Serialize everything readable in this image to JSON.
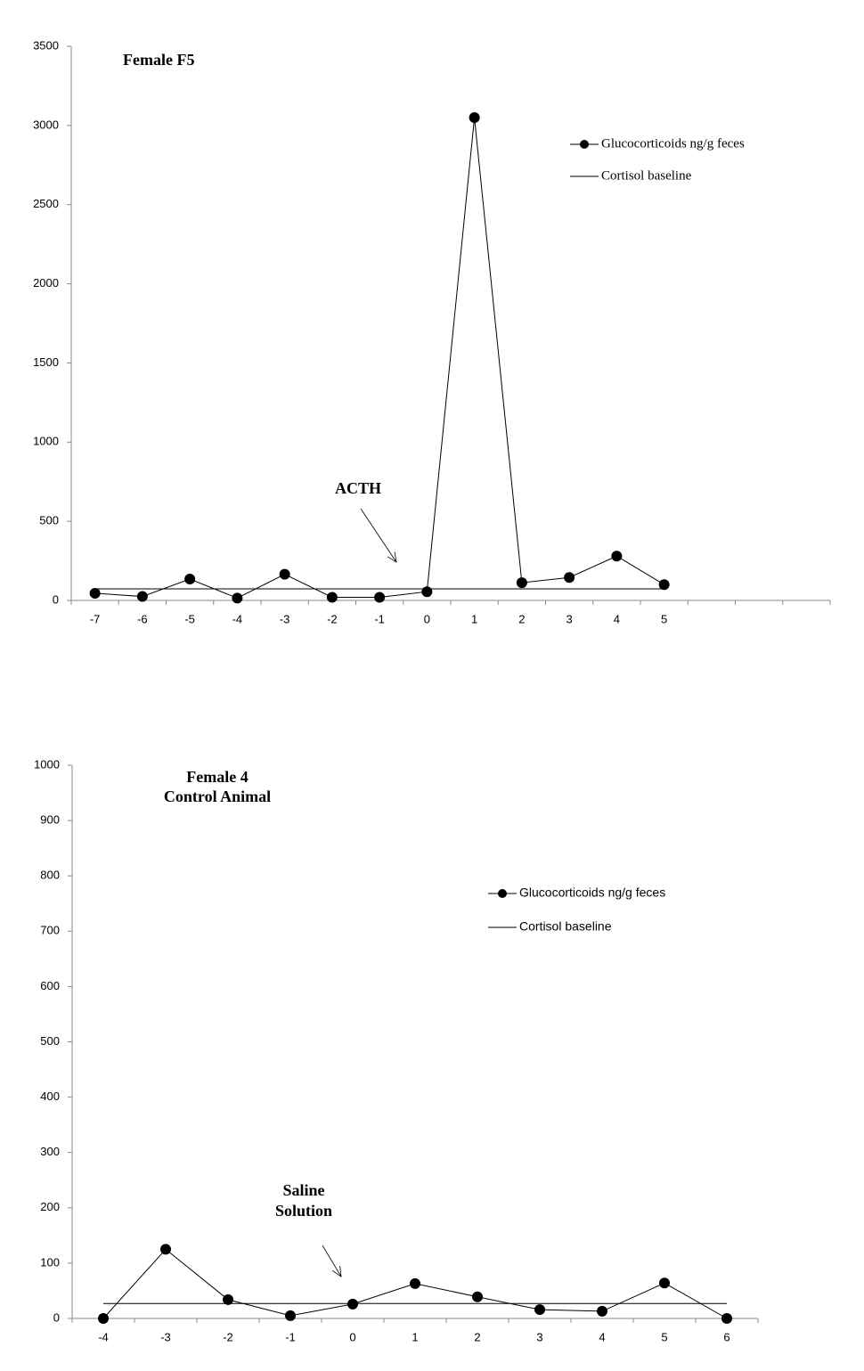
{
  "chart_data": [
    {
      "type": "line",
      "title": "Female F5",
      "annotation": [
        "ACTH"
      ],
      "categories": [
        "-7",
        "-6",
        "-5",
        "-4",
        "-3",
        "-2",
        "-1",
        "0",
        "1",
        "2",
        "3",
        "4",
        "5",
        null,
        null,
        null
      ],
      "series": [
        {
          "name": "Glucocorticoids ng/g feces",
          "color": "#000000",
          "marker": "circle",
          "values": [
            45,
            25,
            135,
            15,
            165,
            20,
            20,
            55,
            3050,
            112,
            145,
            280,
            100,
            null,
            null,
            null
          ]
        },
        {
          "name": "Cortisol baseline",
          "color": "#000000",
          "marker": "none",
          "values": [
            73,
            73,
            73,
            73,
            73,
            73,
            73,
            73,
            73,
            73,
            73,
            73,
            73,
            null,
            null,
            null
          ]
        }
      ],
      "ylim": [
        0,
        3500
      ],
      "yticks": [
        0,
        500,
        1000,
        1500,
        2000,
        2500,
        3000,
        3500
      ],
      "grid": false,
      "legend": "upper right"
    },
    {
      "type": "line",
      "title": "Female 4",
      "subtitle": "Control Animal",
      "annotation": [
        "Saline",
        "Solution"
      ],
      "categories": [
        "-4",
        "-3",
        "-2",
        "-1",
        "0",
        "1",
        "2",
        "3",
        "4",
        "5",
        "6"
      ],
      "series": [
        {
          "name": "Glucocorticoids ng/g feces",
          "color": "#000000",
          "marker": "circle",
          "values": [
            0,
            125,
            34,
            5,
            26,
            63,
            39,
            16,
            13,
            64,
            0
          ]
        },
        {
          "name": "Cortisol baseline",
          "color": "#000000",
          "marker": "none",
          "values": [
            27,
            27,
            27,
            27,
            27,
            27,
            27,
            27,
            27,
            27,
            27
          ]
        }
      ],
      "ylim": [
        0,
        1000
      ],
      "yticks": [
        0,
        100,
        200,
        300,
        400,
        500,
        600,
        700,
        800,
        900,
        1000
      ],
      "grid": false,
      "legend": "upper right"
    }
  ]
}
